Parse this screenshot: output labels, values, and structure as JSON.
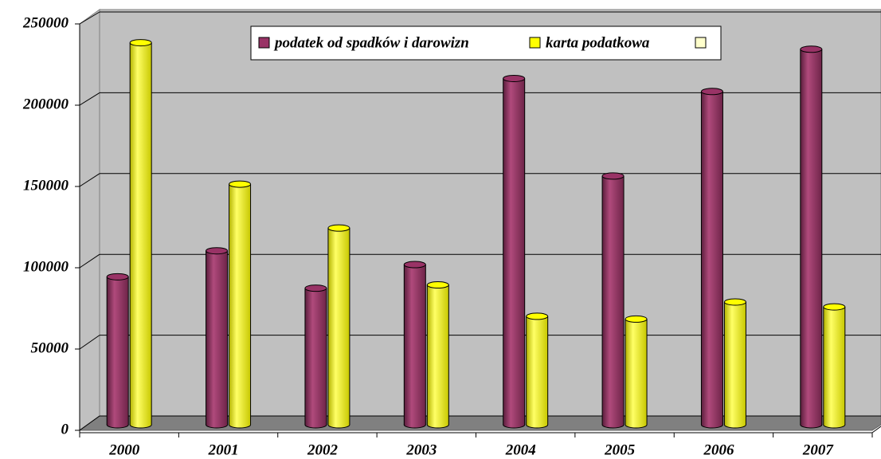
{
  "chart_data": {
    "type": "bar3d",
    "categories": [
      "2000",
      "2001",
      "2002",
      "2003",
      "2004",
      "2005",
      "2006",
      "2007"
    ],
    "series": [
      {
        "name": "podatek od spadków i darowizn",
        "color": "#993366",
        "values": [
          91000,
          107000,
          84000,
          98500,
          213000,
          153000,
          205000,
          231000
        ]
      },
      {
        "name": "karta podatkowa",
        "color": "#ffff00",
        "values": [
          235000,
          148000,
          121000,
          86000,
          66700,
          65000,
          75500,
          72500
        ]
      }
    ],
    "ylim": [
      0,
      250000
    ],
    "yticks": [
      0,
      50000,
      100000,
      150000,
      200000,
      250000
    ],
    "grid": true,
    "legend": "top"
  }
}
